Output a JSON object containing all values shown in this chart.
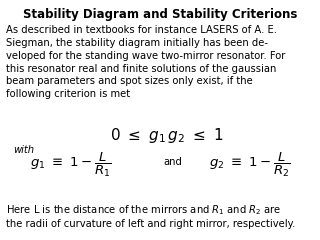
{
  "title": "Stability Diagram and Stability Criterions",
  "background_color": "#ffffff",
  "text_color": "#000000",
  "body_text": "As described in textbooks for instance LASERS of A. E.\nSiegman, the stability diagram initially has been de-\nveloped for the standing wave two-mirror resonator. For\nthis resonator real and finite solutions of the gaussian\nbeam parameters and spot sizes only exist, if the\nfollowing criterion is met",
  "body_fontsize": 7.2,
  "title_fontsize": 8.5,
  "math_fontsize": 9.5,
  "small_fontsize": 7.2,
  "footer_text": "Here L is the distance of the mirrors and $R_1$ and $R_2$ are\nthe radii of curvature of left and right mirror, respectively."
}
